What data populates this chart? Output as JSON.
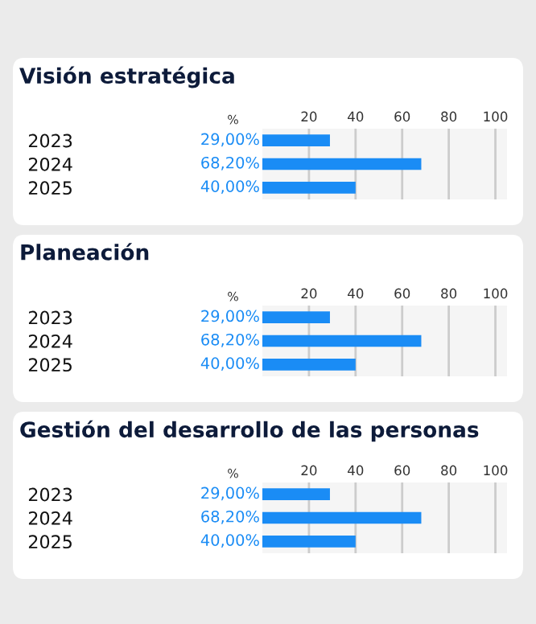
{
  "chart_data": [
    {
      "type": "bar",
      "orientation": "horizontal",
      "title": "Visión estratégica",
      "x2label": "%",
      "categories": [
        "2023",
        "2024",
        "2025"
      ],
      "values": [
        29.0,
        68.2,
        40.0
      ],
      "value_labels": [
        "29,00%",
        "68,20%",
        "40,00%"
      ],
      "color": "#1a8cf5",
      "x2lim": [
        0,
        105
      ],
      "x2ticks": [
        20,
        40,
        60,
        80,
        100
      ],
      "grid": "x"
    },
    {
      "type": "bar",
      "orientation": "horizontal",
      "title": "Planeación",
      "x2label": "%",
      "categories": [
        "2023",
        "2024",
        "2025"
      ],
      "values": [
        29.0,
        68.2,
        40.0
      ],
      "value_labels": [
        "29,00%",
        "68,20%",
        "40,00%"
      ],
      "color": "#1a8cf5",
      "x2lim": [
        0,
        105
      ],
      "x2ticks": [
        20,
        40,
        60,
        80,
        100
      ],
      "grid": "x"
    },
    {
      "type": "bar",
      "orientation": "horizontal",
      "title": "Gestión del desarrollo de las personas",
      "x2label": "%",
      "categories": [
        "2023",
        "2024",
        "2025"
      ],
      "values": [
        29.0,
        68.2,
        40.0
      ],
      "value_labels": [
        "29,00%",
        "68,20%",
        "40,00%"
      ],
      "color": "#1a8cf5",
      "x2lim": [
        0,
        105
      ],
      "x2ticks": [
        20,
        40,
        60,
        80,
        100
      ],
      "grid": "x"
    }
  ]
}
